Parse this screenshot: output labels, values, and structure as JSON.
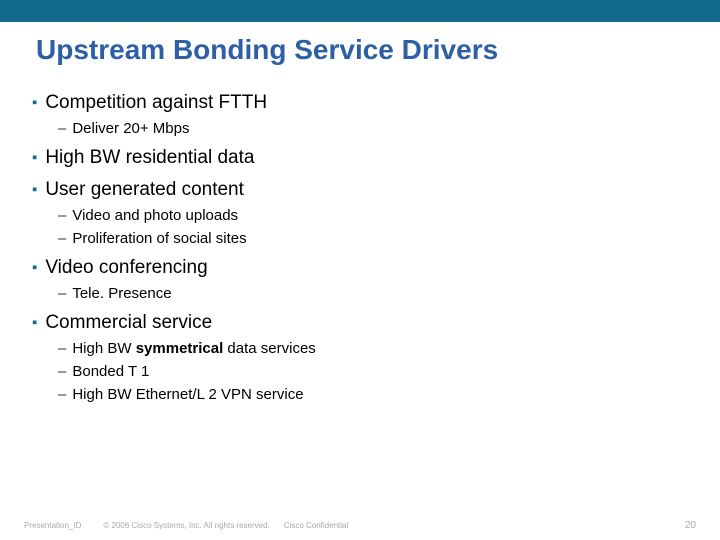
{
  "title": "Upstream Bonding Service Drivers",
  "bullets": [
    {
      "text": "Competition against FTTH",
      "subs": [
        {
          "text": "Deliver 20+ Mbps"
        }
      ]
    },
    {
      "text": "High BW residential data",
      "subs": []
    },
    {
      "text": "User generated content",
      "subs": [
        {
          "text": "Video and photo uploads"
        },
        {
          "text": "Proliferation of social sites"
        }
      ]
    },
    {
      "text": "Video conferencing",
      "subs": [
        {
          "text": "Tele. Presence"
        }
      ]
    },
    {
      "text": "Commercial service",
      "subs": [
        {
          "html": "High BW <b>symmetrical</b> data services"
        },
        {
          "text": "Bonded T 1"
        },
        {
          "text": "High BW Ethernet/L 2 VPN service"
        }
      ]
    }
  ],
  "footer": {
    "presentation_id": "Presentation_ID",
    "copyright": "© 2006 Cisco Systems, Inc. All rights reserved.",
    "confidential": "Cisco Confidential",
    "page": "20"
  },
  "colors": {
    "top_bar": "#12698a",
    "title": "#2c5fa6",
    "bullet_mark": "#12698a",
    "footer_text": "#a9a9a9",
    "background": "#ffffff"
  },
  "typography": {
    "title_fontsize": 28,
    "bullet1_fontsize": 19,
    "bullet2_fontsize": 15,
    "footer_fontsize": 8
  }
}
